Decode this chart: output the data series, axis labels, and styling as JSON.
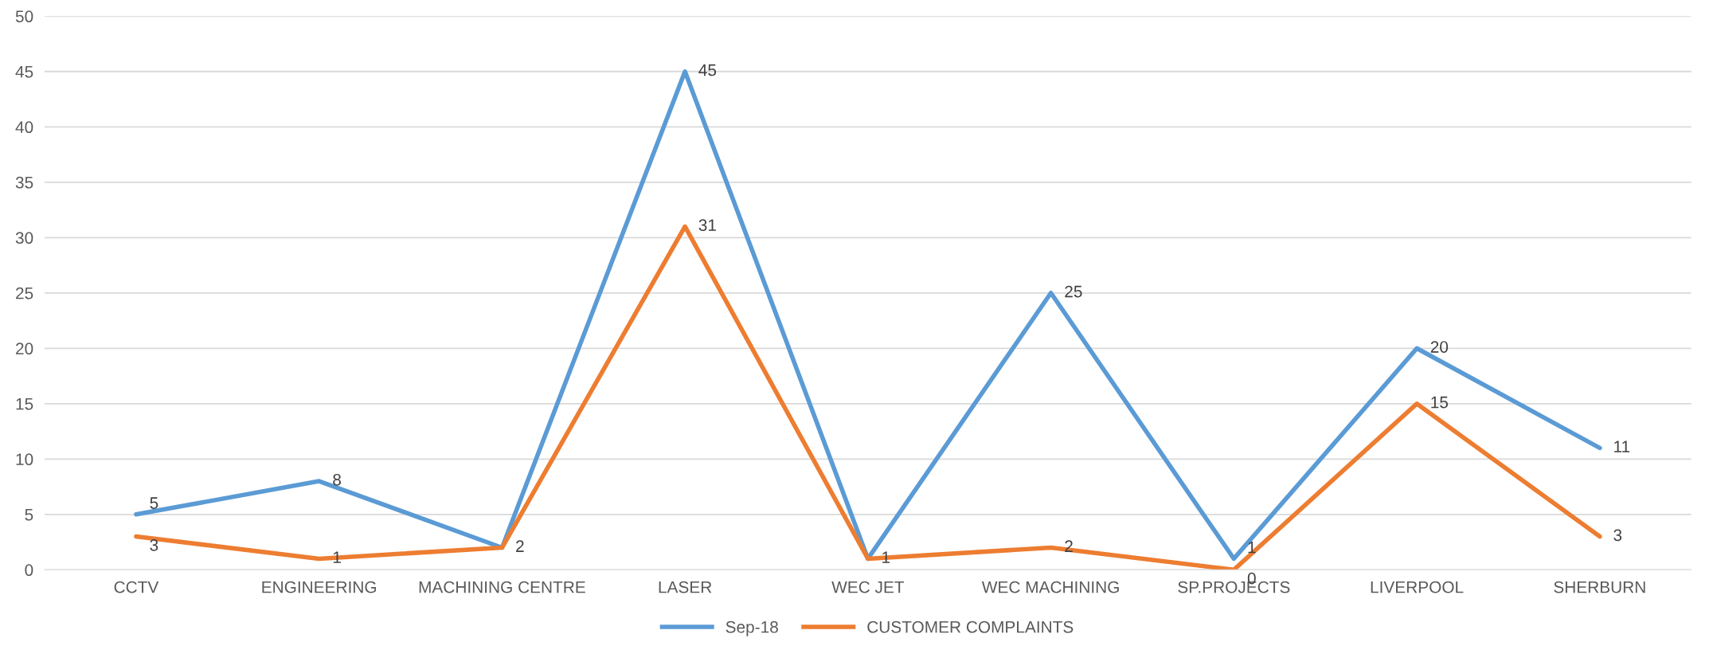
{
  "chart_data": {
    "type": "line",
    "categories": [
      "CCTV",
      "ENGINEERING",
      "MACHINING CENTRE",
      "LASER",
      "WEC JET",
      "WEC MACHINING",
      "SP.PROJECTS",
      "LIVERPOOL",
      "SHERBURN"
    ],
    "series": [
      {
        "name": "Sep-18",
        "color": "#5b9bd5",
        "values": [
          5,
          8,
          2,
          45,
          1,
          25,
          1,
          20,
          11
        ],
        "value_labels": [
          "5",
          "8",
          null,
          "45",
          null,
          "25",
          "1",
          "20",
          "11"
        ]
      },
      {
        "name": "CUSTOMER COMPLAINTS",
        "color": "#ed7d31",
        "values": [
          3,
          1,
          2,
          31,
          1,
          2,
          0,
          15,
          3
        ],
        "value_labels": [
          "3",
          "1",
          "2",
          "31",
          "1",
          "2",
          "0",
          "15",
          "3"
        ]
      }
    ],
    "ylim": [
      0,
      50
    ],
    "yticks": [
      0,
      5,
      10,
      15,
      20,
      25,
      30,
      35,
      40,
      45,
      50
    ],
    "grid": "y",
    "legend": "bottom",
    "marker": "none",
    "line_style": "solid"
  }
}
